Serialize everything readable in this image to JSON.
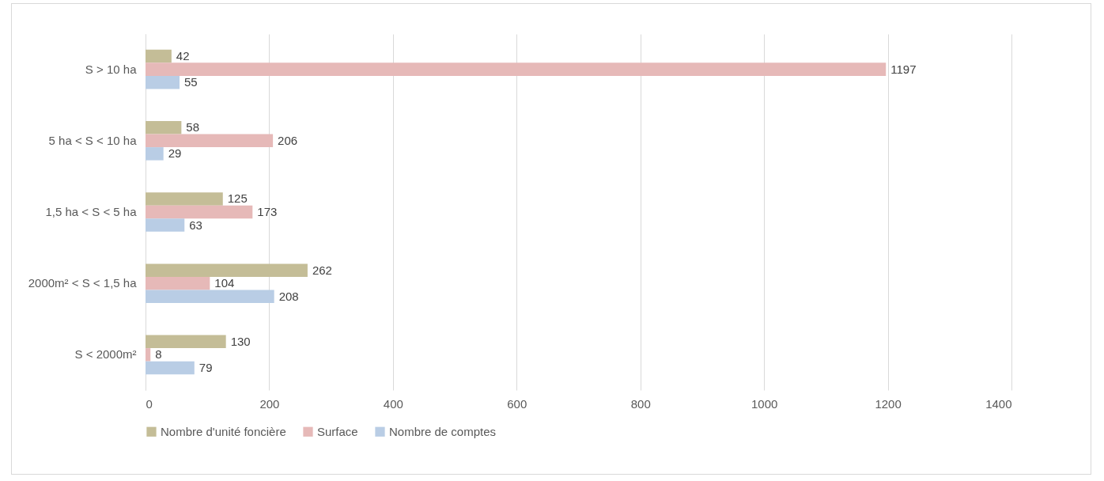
{
  "chart_data": {
    "type": "bar",
    "orientation": "horizontal",
    "categories": [
      "S > 10 ha",
      "5 ha < S < 10 ha",
      "1,5 ha < S < 5 ha",
      "2000m² < S < 1,5 ha",
      "S < 2000m²"
    ],
    "series": [
      {
        "name": "Nombre d'unité foncière",
        "color": "#c4bd97",
        "values": [
          42,
          58,
          125,
          262,
          130
        ]
      },
      {
        "name": "Surface",
        "color": "#e6b9b8",
        "values": [
          1197,
          206,
          173,
          104,
          8
        ]
      },
      {
        "name": "Nombre de comptes",
        "color": "#b9cde5",
        "values": [
          55,
          29,
          63,
          208,
          79
        ]
      }
    ],
    "xlim": [
      0,
      1400
    ],
    "xticks": [
      0,
      200,
      400,
      600,
      800,
      1000,
      1200,
      1400
    ],
    "grid": "x",
    "legend": "bottom",
    "data_labels": true
  }
}
